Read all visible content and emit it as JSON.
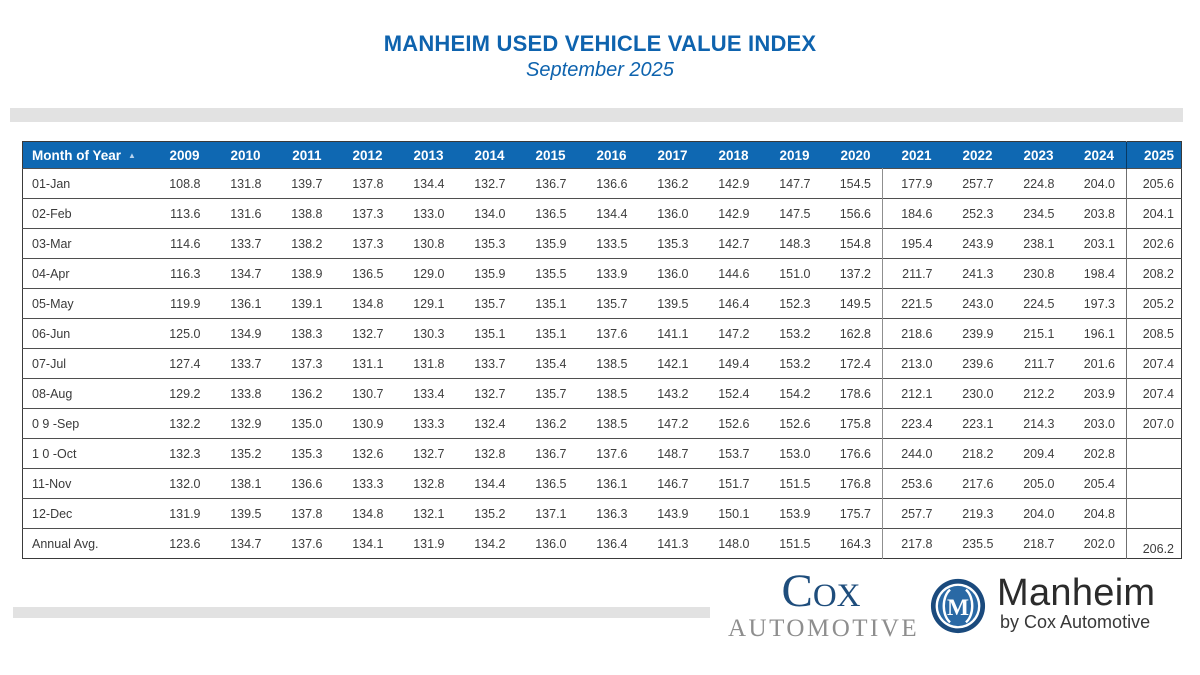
{
  "chart_data": {
    "type": "table",
    "title": "MANHEIM USED VEHICLE VALUE INDEX",
    "subtitle": "September 2025",
    "sort_icon": "▲",
    "columns": [
      "Month of Year",
      "2009",
      "2010",
      "2011",
      "2012",
      "2013",
      "2014",
      "2015",
      "2016",
      "2017",
      "2018",
      "2019",
      "2020",
      "2021",
      "2022",
      "2023",
      "2024",
      "2025"
    ],
    "rows": [
      {
        "label": "01-Jan",
        "values": [
          "108.8",
          "131.8",
          "139.7",
          "137.8",
          "134.4",
          "132.7",
          "136.7",
          "136.6",
          "136.2",
          "142.9",
          "147.7",
          "154.5",
          "177.9",
          "257.7",
          "224.8",
          "204.0",
          "205.6"
        ]
      },
      {
        "label": "02-Feb",
        "values": [
          "113.6",
          "131.6",
          "138.8",
          "137.3",
          "133.0",
          "134.0",
          "136.5",
          "134.4",
          "136.0",
          "142.9",
          "147.5",
          "156.6",
          "184.6",
          "252.3",
          "234.5",
          "203.8",
          "204.1"
        ]
      },
      {
        "label": "03-Mar",
        "values": [
          "114.6",
          "133.7",
          "138.2",
          "137.3",
          "130.8",
          "135.3",
          "135.9",
          "133.5",
          "135.3",
          "142.7",
          "148.3",
          "154.8",
          "195.4",
          "243.9",
          "238.1",
          "203.1",
          "202.6"
        ]
      },
      {
        "label": "04-Apr",
        "values": [
          "116.3",
          "134.7",
          "138.9",
          "136.5",
          "129.0",
          "135.9",
          "135.5",
          "133.9",
          "136.0",
          "144.6",
          "151.0",
          "137.2",
          "211.7",
          "241.3",
          "230.8",
          "198.4",
          "208.2"
        ]
      },
      {
        "label": "05-May",
        "values": [
          "119.9",
          "136.1",
          "139.1",
          "134.8",
          "129.1",
          "135.7",
          "135.1",
          "135.7",
          "139.5",
          "146.4",
          "152.3",
          "149.5",
          "221.5",
          "243.0",
          "224.5",
          "197.3",
          "205.2"
        ]
      },
      {
        "label": "06-Jun",
        "values": [
          "125.0",
          "134.9",
          "138.3",
          "132.7",
          "130.3",
          "135.1",
          "135.1",
          "137.6",
          "141.1",
          "147.2",
          "153.2",
          "162.8",
          "218.6",
          "239.9",
          "215.1",
          "196.1",
          "208.5"
        ]
      },
      {
        "label": "07-Jul",
        "values": [
          "127.4",
          "133.7",
          "137.3",
          "131.1",
          "131.8",
          "133.7",
          "135.4",
          "138.5",
          "142.1",
          "149.4",
          "153.2",
          "172.4",
          "213.0",
          "239.6",
          "211.7",
          "201.6",
          "207.4"
        ]
      },
      {
        "label": "08-Aug",
        "values": [
          "129.2",
          "133.8",
          "136.2",
          "130.7",
          "133.4",
          "132.7",
          "135.7",
          "138.5",
          "143.2",
          "152.4",
          "154.2",
          "178.6",
          "212.1",
          "230.0",
          "212.2",
          "203.9",
          "207.4"
        ]
      },
      {
        "label": "0 9 -Sep",
        "values": [
          "132.2",
          "132.9",
          "135.0",
          "130.9",
          "133.3",
          "132.4",
          "136.2",
          "138.5",
          "147.2",
          "152.6",
          "152.6",
          "175.8",
          "223.4",
          "223.1",
          "214.3",
          "203.0",
          "207.0"
        ]
      },
      {
        "label": "1 0 -Oct",
        "values": [
          "132.3",
          "135.2",
          "135.3",
          "132.6",
          "132.7",
          "132.8",
          "136.7",
          "137.6",
          "148.7",
          "153.7",
          "153.0",
          "176.6",
          "244.0",
          "218.2",
          "209.4",
          "202.8",
          ""
        ]
      },
      {
        "label": "11-Nov",
        "values": [
          "132.0",
          "138.1",
          "136.6",
          "133.3",
          "132.8",
          "134.4",
          "136.5",
          "136.1",
          "146.7",
          "151.7",
          "151.5",
          "176.8",
          "253.6",
          "217.6",
          "205.0",
          "205.4",
          ""
        ]
      },
      {
        "label": "12-Dec",
        "values": [
          "131.9",
          "139.5",
          "137.8",
          "134.8",
          "132.1",
          "135.2",
          "137.1",
          "136.3",
          "143.9",
          "150.1",
          "153.9",
          "175.7",
          "257.7",
          "219.3",
          "204.0",
          "204.8",
          ""
        ]
      },
      {
        "label": "Annual Avg.",
        "values": [
          "123.6",
          "134.7",
          "137.6",
          "134.1",
          "131.9",
          "134.2",
          "136.0",
          "136.4",
          "141.3",
          "148.0",
          "151.5",
          "164.3",
          "217.8",
          "235.5",
          "218.7",
          "202.0",
          "206.2"
        ]
      }
    ]
  },
  "footer": {
    "cox_logo": {
      "name": "Cox",
      "division": "AUTOMOTIVE"
    },
    "manheim_logo": {
      "monogram": "M",
      "name": "Manheim",
      "tagline": "by Cox Automotive"
    }
  },
  "colors": {
    "accent_blue": "#0e63ae",
    "header_bg": "#0f68b2",
    "bar_gray": "#e2e2e2",
    "cox_navy": "#1e4d7c",
    "automotive_gray": "#8e8e8e",
    "badge_navy": "#1a4a7d",
    "badge_blue": "#2a69a5",
    "text_dark": "#3d3d3d"
  }
}
